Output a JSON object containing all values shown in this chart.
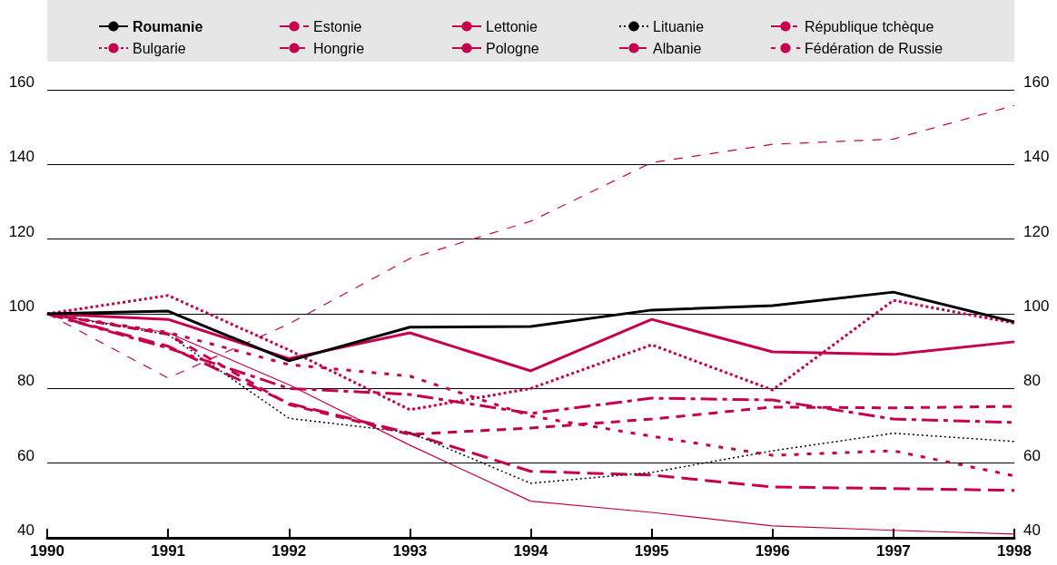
{
  "chart_data": {
    "type": "line",
    "x": [
      1990,
      1991,
      1992,
      1993,
      1994,
      1995,
      1996,
      1997,
      1998
    ],
    "series": [
      {
        "name": "Roumanie",
        "color": "#000000",
        "line_style": "solid",
        "values": [
          100,
          100.7,
          87.4,
          96.4,
          96.6,
          101,
          102.2,
          105.8,
          97.8
        ]
      },
      {
        "name": "Estonie",
        "color": "#c6004f",
        "line_style": "dashed",
        "values": [
          100,
          91.3,
          76,
          68,
          57.8,
          56.8,
          53.6,
          53.2,
          52.7
        ]
      },
      {
        "name": "Lettonie",
        "color": "#c6004f",
        "line_style": "solid",
        "values": [
          100,
          94.9,
          81,
          64.8,
          49.8,
          46.8,
          43.2,
          42,
          41
        ]
      },
      {
        "name": "Lituanie",
        "color": "#000000",
        "line_style": "dotted",
        "values": [
          100,
          94.4,
          72,
          68.2,
          54.6,
          57.5,
          63.3,
          68,
          65.8
        ]
      },
      {
        "name": "République tchèque",
        "color": "#c6004f",
        "line_style": "dashed",
        "values": [
          100,
          90.8,
          80,
          78.4,
          73.3,
          77.4,
          76.9,
          71.8,
          70.9
        ]
      },
      {
        "name": "Bulgarie",
        "color": "#c6004f",
        "line_style": "dotted",
        "values": [
          100,
          104.9,
          90.3,
          74.3,
          80,
          91.7,
          79.6,
          103.6,
          97.5
        ]
      },
      {
        "name": "Hongrie",
        "color": "#c6004f",
        "line_style": "dashed",
        "values": [
          100,
          94.5,
          75.7,
          67.7,
          69.4,
          71.8,
          75,
          74.8,
          75.2
        ]
      },
      {
        "name": "Pologne",
        "color": "#c6004f",
        "line_style": "solid",
        "values": [
          100,
          98.5,
          88,
          94.9,
          84.7,
          98.5,
          89.8,
          89.1,
          92.5
        ]
      },
      {
        "name": "Albanie",
        "color": "#c6004f",
        "line_style": "dashed",
        "values": [
          100,
          82.8,
          97.3,
          114.8,
          124.8,
          140.5,
          145.4,
          146.8,
          155.8
        ]
      },
      {
        "name": "Fédération de Russie",
        "color": "#c6004f",
        "line_style": "dashed",
        "values": [
          100,
          95,
          86.4,
          83.3,
          72.6,
          67.2,
          62.1,
          63.3,
          56.6
        ]
      }
    ],
    "xlim": [
      1990,
      1998
    ],
    "xticks": [
      1990,
      1991,
      1992,
      1993,
      1994,
      1995,
      1996,
      1997,
      1998
    ],
    "ylim": [
      40,
      160
    ],
    "yticks": [
      40,
      60,
      80,
      100,
      120,
      140,
      160
    ],
    "y2lim": [
      40,
      160
    ],
    "y2ticks": [
      40,
      60,
      80,
      100,
      120,
      140,
      160
    ],
    "grid": "y",
    "legend": "top",
    "marker": "none"
  }
}
